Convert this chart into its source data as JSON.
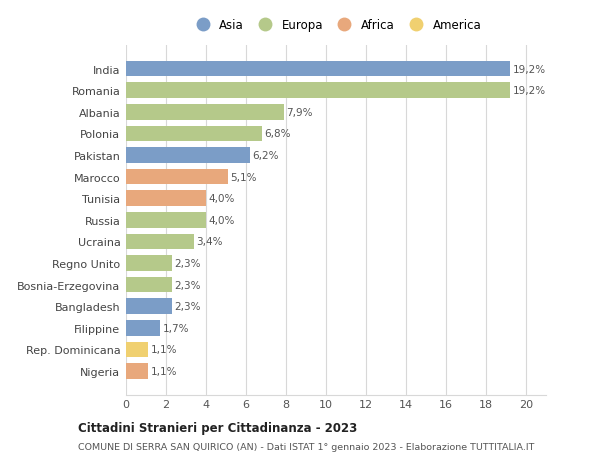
{
  "countries": [
    "Nigeria",
    "Rep. Dominicana",
    "Filippine",
    "Bangladesh",
    "Bosnia-Erzegovina",
    "Regno Unito",
    "Ucraina",
    "Russia",
    "Tunisia",
    "Marocco",
    "Pakistan",
    "Polonia",
    "Albania",
    "Romania",
    "India"
  ],
  "values": [
    1.1,
    1.1,
    1.7,
    2.3,
    2.3,
    2.3,
    3.4,
    4.0,
    4.0,
    5.1,
    6.2,
    6.8,
    7.9,
    19.2,
    19.2
  ],
  "labels": [
    "1,1%",
    "1,1%",
    "1,7%",
    "2,3%",
    "2,3%",
    "2,3%",
    "3,4%",
    "4,0%",
    "4,0%",
    "5,1%",
    "6,2%",
    "6,8%",
    "7,9%",
    "19,2%",
    "19,2%"
  ],
  "continents": [
    "Africa",
    "America",
    "Asia",
    "Asia",
    "Europa",
    "Europa",
    "Europa",
    "Europa",
    "Africa",
    "Africa",
    "Asia",
    "Europa",
    "Europa",
    "Europa",
    "Asia"
  ],
  "colors": {
    "Asia": "#7b9dc7",
    "Europa": "#b5c98a",
    "Africa": "#e8a87c",
    "America": "#f0d070"
  },
  "legend_order": [
    "Asia",
    "Europa",
    "Africa",
    "America"
  ],
  "title": "Cittadini Stranieri per Cittadinanza - 2023",
  "subtitle": "COMUNE DI SERRA SAN QUIRICO (AN) - Dati ISTAT 1° gennaio 2023 - Elaborazione TUTTITALIA.IT",
  "xlim": [
    0,
    21
  ],
  "xticks": [
    0,
    2,
    4,
    6,
    8,
    10,
    12,
    14,
    16,
    18,
    20
  ],
  "background_color": "#ffffff",
  "grid_color": "#d8d8d8"
}
